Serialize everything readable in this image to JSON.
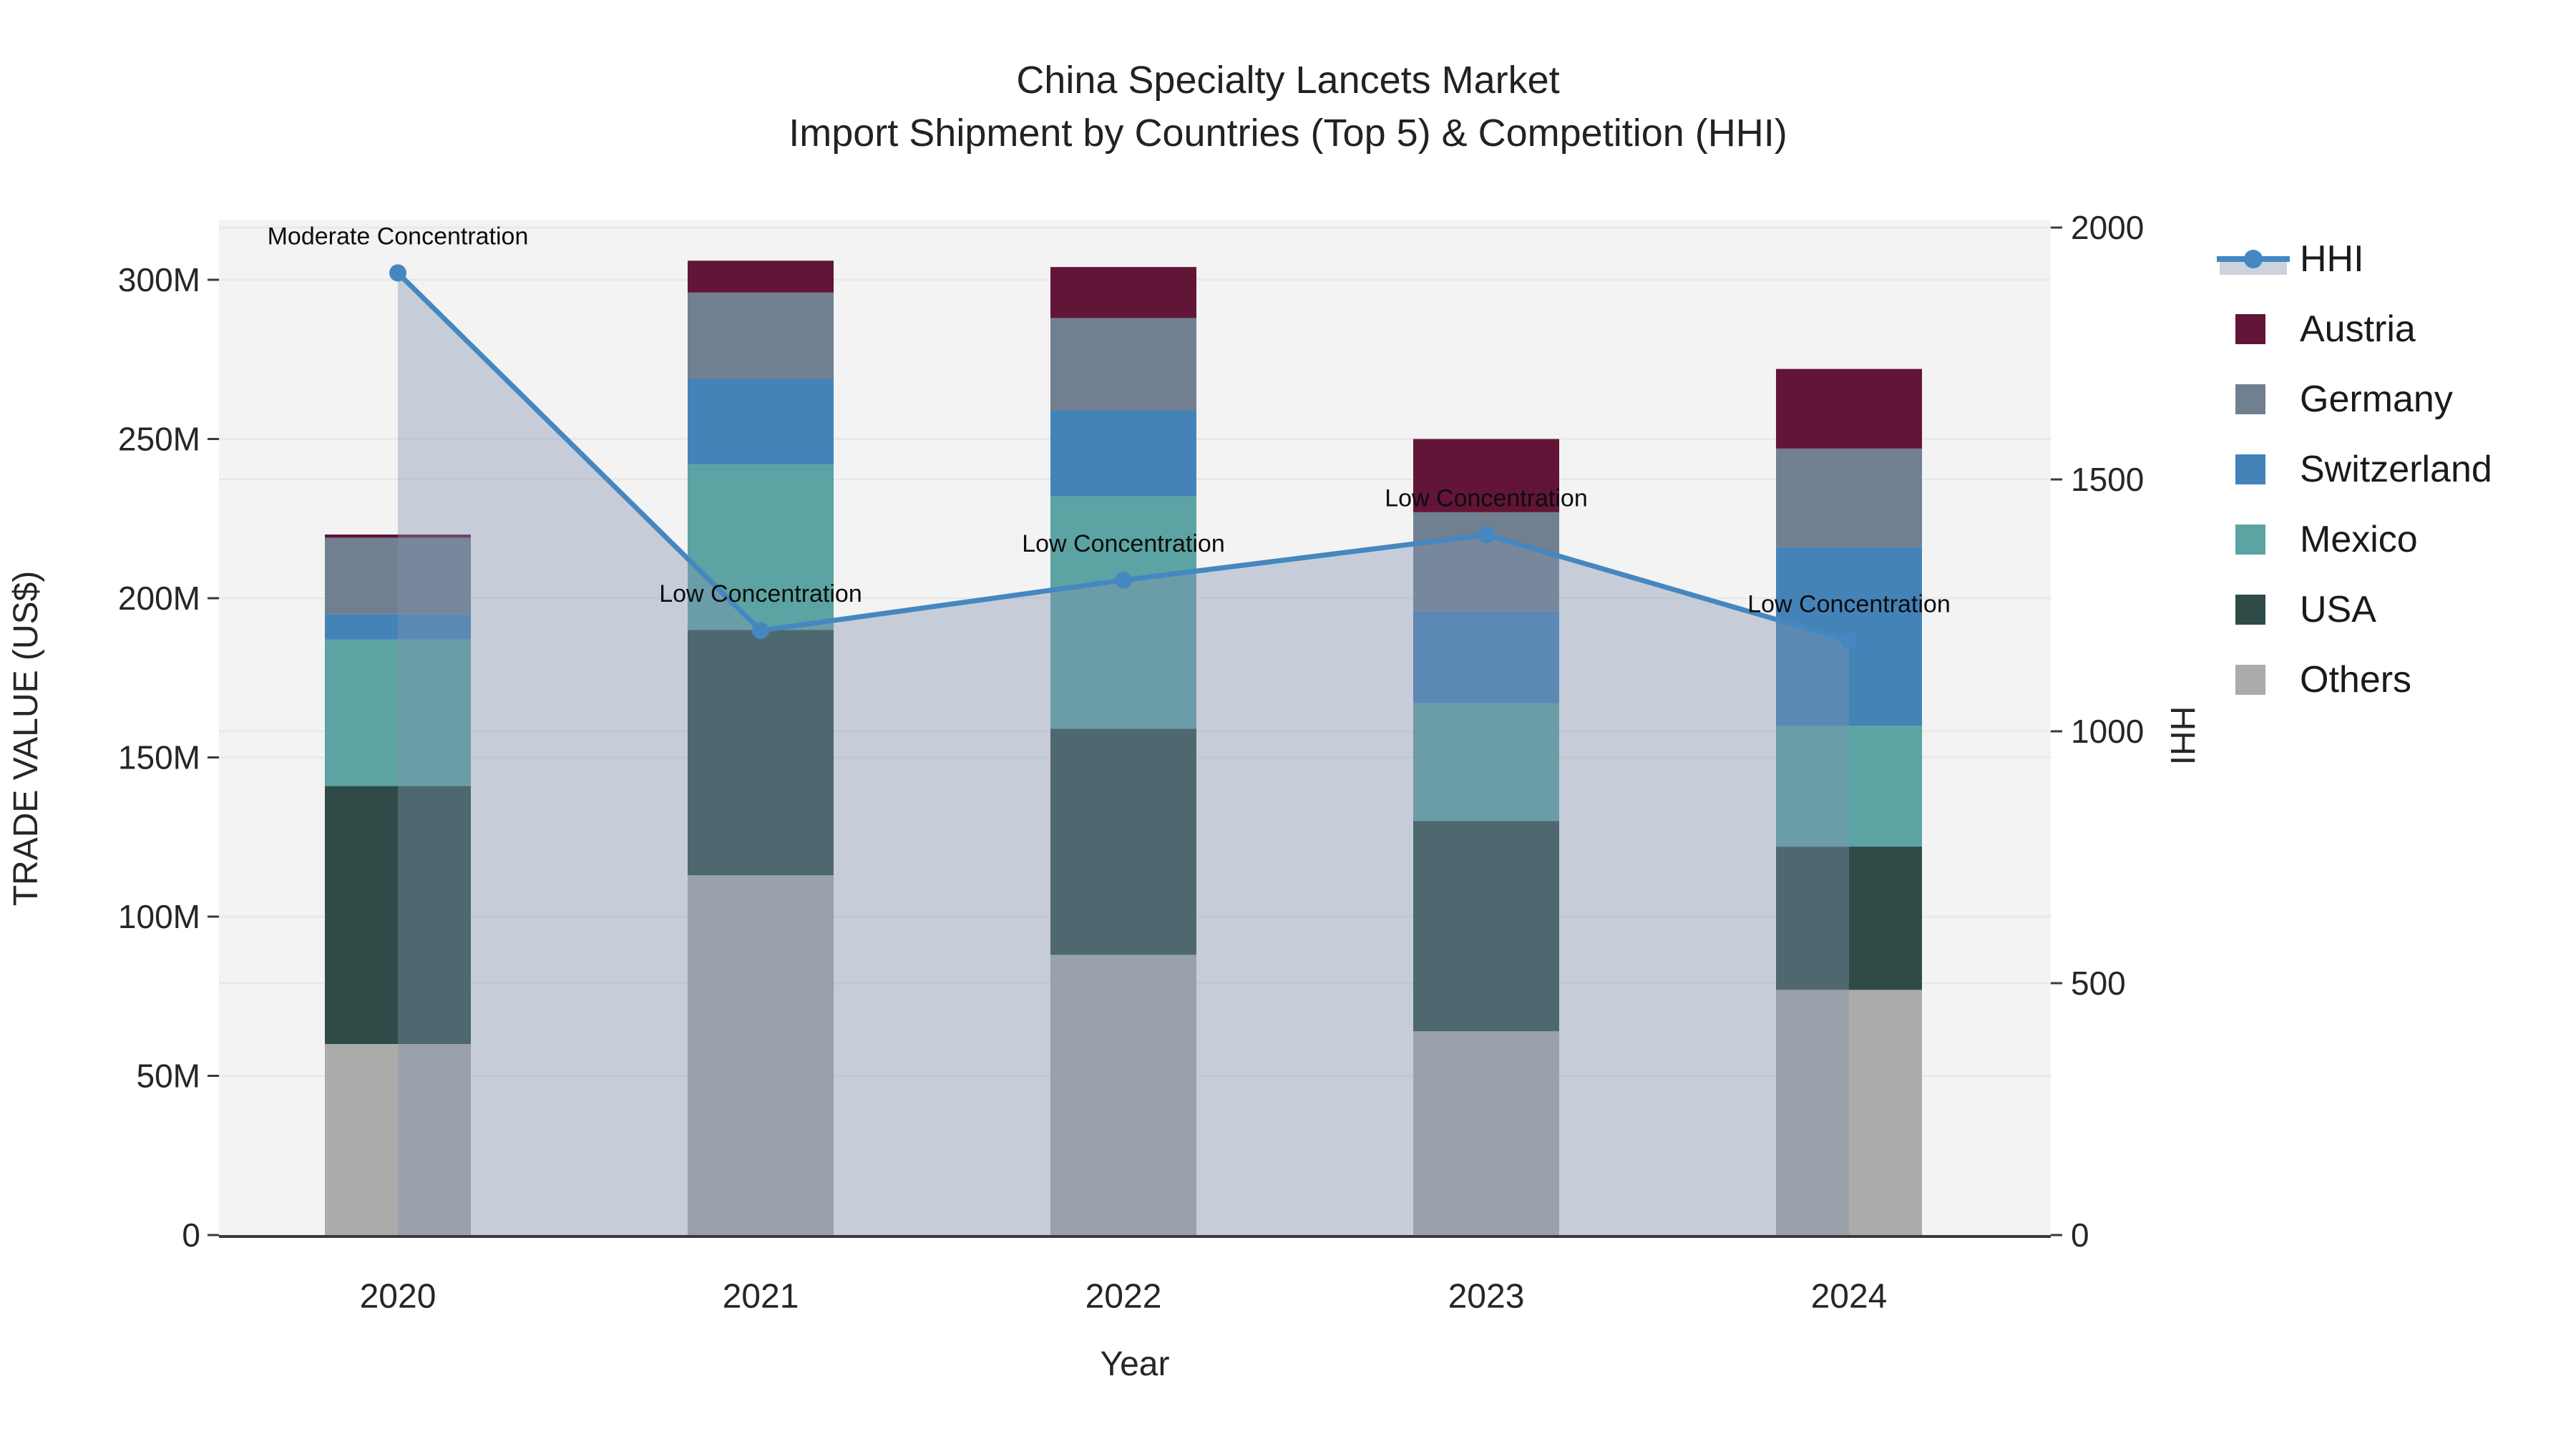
{
  "title": {
    "line1": "China Specialty Lancets Market",
    "line2": "Import Shipment by Countries (Top 5) & Competition (HHI)"
  },
  "axes": {
    "x": {
      "title": "Year",
      "labels": [
        "2020",
        "2021",
        "2022",
        "2023",
        "2024"
      ]
    },
    "y_left": {
      "title": "TRADE VALUE (US$)",
      "tick_labels": [
        "0",
        "50M",
        "100M",
        "150M",
        "200M",
        "250M",
        "300M"
      ],
      "tick_values": [
        0,
        50,
        100,
        150,
        200,
        250,
        300
      ],
      "range": [
        0,
        300
      ],
      "unit": "M US$"
    },
    "y_right": {
      "title": "HHI",
      "tick_labels": [
        "0",
        "500",
        "1000",
        "1500",
        "2000"
      ],
      "tick_values": [
        0,
        500,
        1000,
        1500,
        2000
      ],
      "range": [
        0,
        2000
      ]
    }
  },
  "legend": {
    "items": [
      {
        "label": "HHI",
        "type": "line",
        "color": "#4587c0"
      },
      {
        "label": "Austria",
        "type": "square",
        "color": "#621537"
      },
      {
        "label": "Germany",
        "type": "square",
        "color": "#708090"
      },
      {
        "label": "Switzerland",
        "type": "square",
        "color": "#4483b8"
      },
      {
        "label": "Mexico",
        "type": "square",
        "color": "#5ca4a3"
      },
      {
        "label": "USA",
        "type": "square",
        "color": "#2e4b47"
      },
      {
        "label": "Others",
        "type": "square",
        "color": "#ababa9"
      }
    ]
  },
  "chart_data": {
    "type": "bar",
    "subtype": "stacked-bars-with-line-overlay",
    "categories": [
      "2020",
      "2021",
      "2022",
      "2023",
      "2024"
    ],
    "bar_value_unit": "M US$",
    "series": [
      {
        "name": "Others",
        "color": "#ababa9",
        "values": [
          60,
          113,
          88,
          64,
          77
        ]
      },
      {
        "name": "USA",
        "color": "#2e4b47",
        "values": [
          81,
          77,
          71,
          66,
          45
        ]
      },
      {
        "name": "Mexico",
        "color": "#5ca4a3",
        "values": [
          46,
          52,
          73,
          37,
          38
        ]
      },
      {
        "name": "Switzerland",
        "color": "#4483b8",
        "values": [
          8,
          27,
          27,
          29,
          56
        ]
      },
      {
        "name": "Germany",
        "color": "#708090",
        "values": [
          24,
          27,
          29,
          31,
          31
        ]
      },
      {
        "name": "Austria",
        "color": "#621537",
        "values": [
          1,
          10,
          16,
          23,
          25
        ]
      }
    ],
    "line": {
      "name": "HHI",
      "axis": "right",
      "color": "#4587c0",
      "area_fill": "rgba(130,148,175,0.40)",
      "legend_band_fill": "#ccd3dd",
      "values": [
        1910,
        1200,
        1300,
        1390,
        1180
      ]
    },
    "annotations": [
      {
        "category": "2020",
        "text": "Moderate Concentration"
      },
      {
        "category": "2021",
        "text": "Low Concentration"
      },
      {
        "category": "2022",
        "text": "Low Concentration"
      },
      {
        "category": "2023",
        "text": "Low Concentration"
      },
      {
        "category": "2024",
        "text": "Low Concentration"
      }
    ],
    "title": "China Specialty Lancets Market — Import Shipment by Countries (Top 5) & Competition (HHI)",
    "xlabel": "Year",
    "ylabel_left": "TRADE VALUE (US$)",
    "ylabel_right": "HHI",
    "ylim_left": [
      0,
      300
    ],
    "ylim_right": [
      0,
      2000
    ],
    "grid": true,
    "legend_position": "right"
  },
  "colors": {
    "paper_bg": "#ffffff",
    "plot_bg": "#f3f3f3",
    "grid": "#e8e8e8",
    "axis_line": "#3a3a3a",
    "tick": "#3a3a3a",
    "text": "#262626"
  }
}
